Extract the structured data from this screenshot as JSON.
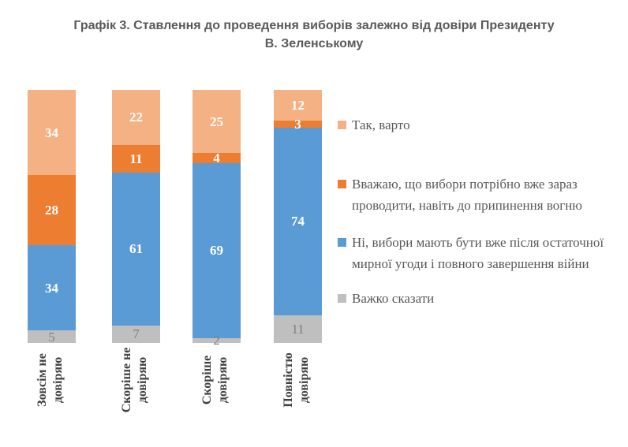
{
  "chart_data": {
    "type": "bar",
    "variant": "stacked-100-column",
    "title": "Графік 3. Ставлення до проведення виборів залежно від довіри Президенту В. Зеленському",
    "title_lines": [
      "Графік 3. Ставлення до проведення виборів залежно від довіри Президенту",
      "В. Зеленському"
    ],
    "categories": [
      "Зовсім не довіряю",
      "Скоріше не довіряю",
      "Скоріше довіряю",
      "Повністю довіряю"
    ],
    "category_lines": [
      [
        "Зовсім не",
        "довіряю"
      ],
      [
        "Скоріше не",
        "довіряю"
      ],
      [
        "Скоріше",
        "довіряю"
      ],
      [
        "Повністю",
        "довіряю"
      ]
    ],
    "series": [
      {
        "name": "Так, варто",
        "color": "#F4B183",
        "label_color": "#FFFFFF",
        "values": [
          34,
          22,
          25,
          12
        ]
      },
      {
        "name": "Вважаю, що вибори потрібно вже зараз проводити, навіть до припинення вогню",
        "color": "#ED7D31",
        "label_color": "#FFFFFF",
        "values": [
          28,
          11,
          4,
          3
        ]
      },
      {
        "name": "Ні, вибори мають бути вже після остаточної мирної угоди і повного завершення війни",
        "color": "#5B9BD5",
        "label_color": "#FFFFFF",
        "values": [
          34,
          61,
          69,
          74
        ]
      },
      {
        "name": "Важко сказати",
        "color": "#BFBFBF",
        "label_color": "#7F7F7F",
        "values": [
          5,
          7,
          2,
          11
        ]
      }
    ],
    "legend_position": "right",
    "axes": {
      "y_axis_visible": false,
      "x_label_rotation_deg": 90
    },
    "colors": {
      "title_text": "#595959",
      "axis_label_text": "#404040",
      "legend_text": "#595959",
      "background": "#FFFFFF"
    }
  }
}
